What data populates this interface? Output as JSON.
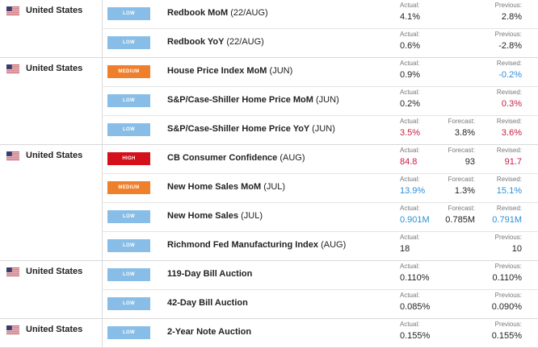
{
  "groups": [
    {
      "country": "United States",
      "events": [
        {
          "importance": "LOW",
          "name": "Redbook MoM",
          "period": "(22/AUG)",
          "actual": "4.1%",
          "actual_color": "#222222",
          "forecast_label": "",
          "forecast": "",
          "prev_label": "Previous:",
          "prev": "2.8%",
          "prev_color": "#222222"
        },
        {
          "importance": "LOW",
          "name": "Redbook YoY",
          "period": "(22/AUG)",
          "actual": "0.6%",
          "actual_color": "#222222",
          "forecast_label": "",
          "forecast": "",
          "prev_label": "Previous:",
          "prev": "-2.8%",
          "prev_color": "#222222"
        }
      ]
    },
    {
      "country": "United States",
      "events": [
        {
          "importance": "MEDIUM",
          "name": "House Price Index MoM",
          "period": "(JUN)",
          "actual": "0.9%",
          "actual_color": "#222222",
          "forecast_label": "",
          "forecast": "",
          "prev_label": "Revised:",
          "prev": "-0.2%",
          "prev_color": "#2b8fd6"
        },
        {
          "importance": "LOW",
          "name": "S&P/Case-Shiller Home Price MoM",
          "period": "(JUN)",
          "actual": "0.2%",
          "actual_color": "#222222",
          "forecast_label": "",
          "forecast": "",
          "prev_label": "Revised:",
          "prev": "0.3%",
          "prev_color": "#c81c42"
        },
        {
          "importance": "LOW",
          "name": "S&P/Case-Shiller Home Price YoY",
          "period": "(JUN)",
          "actual": "3.5%",
          "actual_color": "#c81c42",
          "forecast_label": "Forecast:",
          "forecast": "3.8%",
          "prev_label": "Revised:",
          "prev": "3.6%",
          "prev_color": "#c81c42"
        }
      ]
    },
    {
      "country": "United States",
      "events": [
        {
          "importance": "HIGH",
          "name": "CB Consumer Confidence",
          "period": "(AUG)",
          "actual": "84.8",
          "actual_color": "#c81c42",
          "forecast_label": "Forecast:",
          "forecast": "93",
          "prev_label": "Revised:",
          "prev": "91.7",
          "prev_color": "#c81c42"
        },
        {
          "importance": "MEDIUM",
          "name": "New Home Sales MoM",
          "period": "(JUL)",
          "actual": "13.9%",
          "actual_color": "#2b8fd6",
          "forecast_label": "Forecast:",
          "forecast": "1.3%",
          "prev_label": "Revised:",
          "prev": "15.1%",
          "prev_color": "#2b8fd6"
        },
        {
          "importance": "LOW",
          "name": "New Home Sales",
          "period": "(JUL)",
          "actual": "0.901M",
          "actual_color": "#2b8fd6",
          "forecast_label": "Forecast:",
          "forecast": "0.785M",
          "prev_label": "Revised:",
          "prev": "0.791M",
          "prev_color": "#2b8fd6"
        },
        {
          "importance": "LOW",
          "name": "Richmond Fed Manufacturing Index",
          "period": "(AUG)",
          "actual": "18",
          "actual_color": "#222222",
          "forecast_label": "",
          "forecast": "",
          "prev_label": "Previous:",
          "prev": "10",
          "prev_color": "#222222"
        }
      ]
    },
    {
      "country": "United States",
      "events": [
        {
          "importance": "LOW",
          "name": "119-Day Bill Auction",
          "period": "",
          "actual": "0.110%",
          "actual_color": "#222222",
          "forecast_label": "",
          "forecast": "",
          "prev_label": "Previous:",
          "prev": "0.110%",
          "prev_color": "#222222"
        },
        {
          "importance": "LOW",
          "name": "42-Day Bill Auction",
          "period": "",
          "actual": "0.085%",
          "actual_color": "#222222",
          "forecast_label": "",
          "forecast": "",
          "prev_label": "Previous:",
          "prev": "0.090%",
          "prev_color": "#222222"
        }
      ]
    },
    {
      "country": "United States",
      "events": [
        {
          "importance": "LOW",
          "name": "2-Year Note Auction",
          "period": "",
          "actual": "0.155%",
          "actual_color": "#222222",
          "forecast_label": "",
          "forecast": "",
          "prev_label": "Previous:",
          "prev": "0.155%",
          "prev_color": "#222222"
        }
      ]
    }
  ],
  "labels": {
    "actual": "Actual:"
  },
  "icons": {
    "flag": "us-flag-icon"
  },
  "colors": {
    "low": "#87bde6",
    "medium": "#f07f2b",
    "high": "#d4101a",
    "better": "#2b8fd6",
    "worse": "#c81c42"
  }
}
